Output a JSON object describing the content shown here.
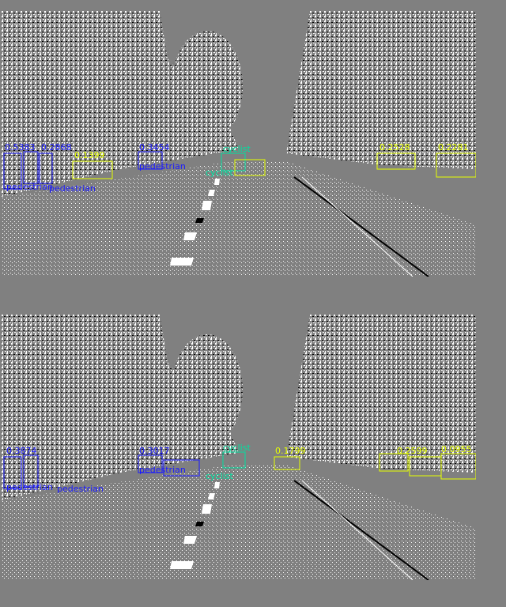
{
  "colors": {
    "background": "#808080",
    "pedestrian": "#1a1aff",
    "car": "#e6ff00",
    "cyclist": "#00e0a0"
  },
  "panels": [
    {
      "id": "top",
      "labels": {
        "pedestrian_left_1": "0.5383",
        "pedestrian_left_2": "pedestrian",
        "pedestrian_left_3": "0.2868",
        "pedestrian_left_4": "pedestrian",
        "pedestrian_center_1": "0.3454",
        "pedestrian_center_2": "pedestrian",
        "car_center": "0.1399",
        "cyclist_center": "cyclist",
        "cyclist_center_2": "cyclist",
        "car_right": "0.2528",
        "car_right_2": "0.2281"
      }
    },
    {
      "id": "bottom",
      "labels": {
        "pedestrian_left_1": "0.3874",
        "pedestrian_left_2": "pedestrian",
        "pedestrian_left_3": "pedestrian",
        "pedestrian_center_1": "0.3017",
        "pedestrian_center_2": "pedestrian",
        "car_center": "0.1799",
        "cyclist_center": "cyclist",
        "cyclist_center_2": "cyclist",
        "car_right": "0.2599",
        "car_right_2": "0.0955"
      }
    }
  ]
}
